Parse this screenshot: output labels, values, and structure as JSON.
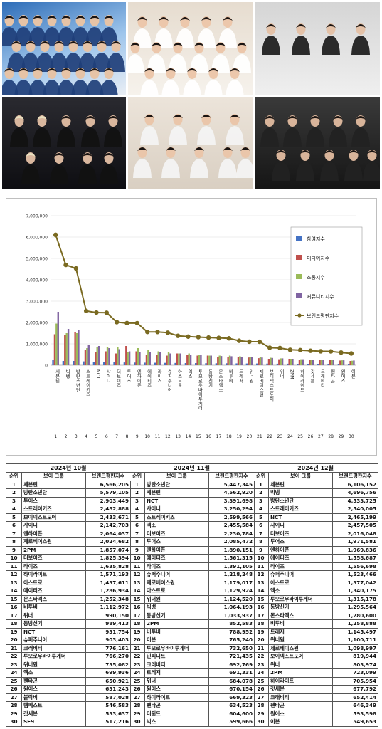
{
  "colors": {
    "participation": "#4472C4",
    "media": "#C0504D",
    "communication": "#9BBB59",
    "community": "#8064A2",
    "brand": "#7A6A21",
    "grid": "#d9d9d9"
  },
  "photos": [
    {
      "id": "photo-group-1",
      "theme": "blue-white"
    },
    {
      "id": "photo-group-2",
      "theme": "white-tee"
    },
    {
      "id": "photo-group-3",
      "theme": "black-suits"
    },
    {
      "id": "photo-group-4",
      "theme": "dark-stage"
    },
    {
      "id": "photo-group-5",
      "theme": "white-denim"
    },
    {
      "id": "photo-group-6",
      "theme": "dark-group"
    }
  ],
  "chart_data": {
    "type": "bar",
    "title": "",
    "xlabel": "",
    "ylabel": "",
    "ylim": [
      0,
      7000000
    ],
    "yticks": [
      "0",
      "1,000,000",
      "2,000,000",
      "3,000,000",
      "4,000,000",
      "5,000,000",
      "6,000,000",
      "7,000,000"
    ],
    "grid": true,
    "legend_position": "right",
    "numbers": [
      "1",
      "2",
      "3",
      "4",
      "5",
      "6",
      "7",
      "8",
      "9",
      "10",
      "11",
      "12",
      "13",
      "14",
      "15",
      "16",
      "17",
      "18",
      "19",
      "20",
      "21",
      "22",
      "23",
      "24",
      "25",
      "26",
      "27",
      "28",
      "29",
      "30"
    ],
    "categories": [
      "세븐틴",
      "빅뱅",
      "방탄소년단",
      "스트레이키즈",
      "NCT",
      "샤이니",
      "더보이즈",
      "투어스",
      "엔하이픈",
      "에이티즈",
      "라이즈",
      "슈퍼주니어",
      "아스트로",
      "엑소",
      "투모로우바이투게더",
      "동방신기",
      "몬스타엑스",
      "비투비",
      "트레저",
      "위너원",
      "제로베이스원",
      "보이넥스트도어",
      "위너",
      "2PM",
      "하이라이트",
      "갓세븐",
      "크래비티",
      "펜타곤",
      "원어스",
      "이븐"
    ],
    "series": [
      {
        "name": "참여지수",
        "values": [
          250000,
          200000,
          200000,
          180000,
          160000,
          150000,
          140000,
          130000,
          125000,
          120000,
          115000,
          110000,
          105000,
          100000,
          100000,
          95000,
          90000,
          90000,
          85000,
          80000,
          80000,
          75000,
          70000,
          70000,
          65000,
          60000,
          60000,
          55000,
          55000,
          50000
        ]
      },
      {
        "name": "미디어지수",
        "values": [
          1450000,
          1400000,
          1550000,
          700000,
          600000,
          650000,
          550000,
          900000,
          650000,
          500000,
          500000,
          450000,
          550000,
          500000,
          450000,
          450000,
          400000,
          400000,
          380000,
          360000,
          330000,
          300000,
          280000,
          300000,
          250000,
          250000,
          250000,
          250000,
          220000,
          200000
        ]
      },
      {
        "name": "소통지수",
        "values": [
          1950000,
          1500000,
          1500000,
          800000,
          850000,
          850000,
          850000,
          600000,
          800000,
          700000,
          650000,
          600000,
          550000,
          550000,
          500000,
          450000,
          450000,
          450000,
          420000,
          400000,
          380000,
          350000,
          320000,
          300000,
          280000,
          260000,
          250000,
          240000,
          230000,
          210000
        ]
      },
      {
        "name": "커뮤니티지수",
        "values": [
          2500000,
          1700000,
          1650000,
          950000,
          900000,
          800000,
          750000,
          650000,
          600000,
          600000,
          600000,
          550000,
          550000,
          500000,
          480000,
          450000,
          430000,
          420000,
          400000,
          380000,
          360000,
          340000,
          320000,
          300000,
          280000,
          260000,
          250000,
          240000,
          230000,
          220000
        ]
      },
      {
        "name": "브랜드평판지수",
        "values": [
          6106152,
          4696756,
          4533725,
          2540005,
          2465199,
          2457505,
          2016048,
          1971581,
          1969836,
          1558687,
          1556698,
          1523466,
          1377042,
          1340175,
          1315178,
          1295564,
          1280600,
          1258888,
          1145497,
          1100711,
          1098997,
          819944,
          803974,
          723099,
          705954,
          677792,
          652414,
          646349,
          593598,
          549653
        ]
      }
    ]
  },
  "tables": [
    {
      "period": "2024년 10월",
      "headers": {
        "rank": "순위",
        "name": "보이 그룹",
        "value": "브랜드평판지수"
      },
      "rows": [
        [
          "1",
          "세븐틴",
          "6,566,205"
        ],
        [
          "2",
          "방탄소년단",
          "5,579,105"
        ],
        [
          "3",
          "투어스",
          "2,903,449"
        ],
        [
          "4",
          "스트레이키즈",
          "2,482,888"
        ],
        [
          "5",
          "보이넥스트도어",
          "2,433,671"
        ],
        [
          "6",
          "샤이니",
          "2,142,703"
        ],
        [
          "7",
          "엔하이픈",
          "2,064,037"
        ],
        [
          "8",
          "제로베이스원",
          "2,024,682"
        ],
        [
          "9",
          "2PM",
          "1,857,074"
        ],
        [
          "10",
          "더보이즈",
          "1,825,394"
        ],
        [
          "11",
          "라이즈",
          "1,635,828"
        ],
        [
          "12",
          "하이라이트",
          "1,571,193"
        ],
        [
          "13",
          "아스트로",
          "1,437,611"
        ],
        [
          "14",
          "에이티즈",
          "1,286,934"
        ],
        [
          "15",
          "몬스타엑스",
          "1,252,348"
        ],
        [
          "16",
          "비투비",
          "1,112,972"
        ],
        [
          "17",
          "위너",
          "990,150"
        ],
        [
          "18",
          "동방신기",
          "989,413"
        ],
        [
          "19",
          "NCT",
          "931,754"
        ],
        [
          "20",
          "슈퍼주니어",
          "903,403"
        ],
        [
          "21",
          "크래비티",
          "776,161"
        ],
        [
          "22",
          "투모로우바이투게더",
          "766,270"
        ],
        [
          "23",
          "위너원",
          "735,082"
        ],
        [
          "24",
          "엑소",
          "699,936"
        ],
        [
          "25",
          "펜타곤",
          "650,921"
        ],
        [
          "26",
          "원어스",
          "631,243"
        ],
        [
          "27",
          "블락비",
          "587,028"
        ],
        [
          "28",
          "템페스트",
          "546,583"
        ],
        [
          "29",
          "갓세븐",
          "533,637"
        ],
        [
          "30",
          "SF9",
          "517,216"
        ]
      ]
    },
    {
      "period": "2024년 11월",
      "headers": {
        "rank": "순위",
        "name": "보이 그룹",
        "value": "브랜드평판지수"
      },
      "rows": [
        [
          "1",
          "방탄소년단",
          "5,447,345"
        ],
        [
          "2",
          "세븐틴",
          "4,562,920"
        ],
        [
          "3",
          "NCT",
          "3,391,698"
        ],
        [
          "4",
          "샤이니",
          "3,250,294"
        ],
        [
          "5",
          "스트레이키즈",
          "2,599,566"
        ],
        [
          "6",
          "엑소",
          "2,455,584"
        ],
        [
          "7",
          "더보이즈",
          "2,230,784"
        ],
        [
          "8",
          "투어스",
          "2,085,472"
        ],
        [
          "9",
          "엔하이픈",
          "1,890,151"
        ],
        [
          "10",
          "에이티즈",
          "1,561,315"
        ],
        [
          "11",
          "라이즈",
          "1,391,105"
        ],
        [
          "12",
          "슈퍼주니어",
          "1,218,248"
        ],
        [
          "13",
          "제로베이스원",
          "1,179,017"
        ],
        [
          "14",
          "아스트로",
          "1,129,924"
        ],
        [
          "15",
          "위너원",
          "1,124,520"
        ],
        [
          "16",
          "빅뱅",
          "1,064,193"
        ],
        [
          "17",
          "동방신기",
          "1,033,937"
        ],
        [
          "18",
          "2PM",
          "852,583"
        ],
        [
          "19",
          "비투비",
          "788,952"
        ],
        [
          "20",
          "이븐",
          "765,240"
        ],
        [
          "21",
          "투모로우바이투게더",
          "732,650"
        ],
        [
          "22",
          "인피니트",
          "721,435"
        ],
        [
          "23",
          "크래비티",
          "692,769"
        ],
        [
          "24",
          "트레저",
          "691,331"
        ],
        [
          "25",
          "위너",
          "684,078"
        ],
        [
          "26",
          "원어스",
          "670,154"
        ],
        [
          "27",
          "하이라이트",
          "669,323"
        ],
        [
          "28",
          "펜타곤",
          "634,523"
        ],
        [
          "29",
          "더윈드",
          "604,600"
        ],
        [
          "30",
          "빅스",
          "599,666"
        ]
      ]
    },
    {
      "period": "2024년 12월",
      "headers": {
        "rank": "순위",
        "name": "보이 그룹",
        "value": "브랜드평판지수"
      },
      "rows": [
        [
          "1",
          "세븐틴",
          "6,106,152"
        ],
        [
          "2",
          "빅뱅",
          "4,696,756"
        ],
        [
          "3",
          "방탄소년단",
          "4,533,725"
        ],
        [
          "4",
          "스트레이키즈",
          "2,540,005"
        ],
        [
          "5",
          "NCT",
          "2,465,199"
        ],
        [
          "6",
          "샤이니",
          "2,457,505"
        ],
        [
          "7",
          "더보이즈",
          "2,016,048"
        ],
        [
          "8",
          "투어스",
          "1,971,581"
        ],
        [
          "9",
          "엔하이픈",
          "1,969,836"
        ],
        [
          "10",
          "에이티즈",
          "1,558,687"
        ],
        [
          "11",
          "라이즈",
          "1,556,698"
        ],
        [
          "12",
          "슈퍼주니어",
          "1,523,466"
        ],
        [
          "13",
          "아스트로",
          "1,377,042"
        ],
        [
          "14",
          "엑소",
          "1,340,175"
        ],
        [
          "15",
          "투모로우바이투게더",
          "1,315,178"
        ],
        [
          "16",
          "동방신기",
          "1,295,564"
        ],
        [
          "17",
          "몬스타엑스",
          "1,280,600"
        ],
        [
          "18",
          "비투비",
          "1,258,888"
        ],
        [
          "19",
          "트레저",
          "1,145,497"
        ],
        [
          "20",
          "위너원",
          "1,100,711"
        ],
        [
          "21",
          "제로베이스원",
          "1,098,997"
        ],
        [
          "22",
          "보이넥스트도어",
          "819,944"
        ],
        [
          "23",
          "위너",
          "803,974"
        ],
        [
          "24",
          "2PM",
          "723,099"
        ],
        [
          "25",
          "하이라이트",
          "705,954"
        ],
        [
          "26",
          "갓세븐",
          "677,792"
        ],
        [
          "27",
          "크래비티",
          "652,414"
        ],
        [
          "28",
          "펜타곤",
          "646,349"
        ],
        [
          "29",
          "원어스",
          "593,598"
        ],
        [
          "30",
          "이븐",
          "549,653"
        ]
      ]
    }
  ]
}
